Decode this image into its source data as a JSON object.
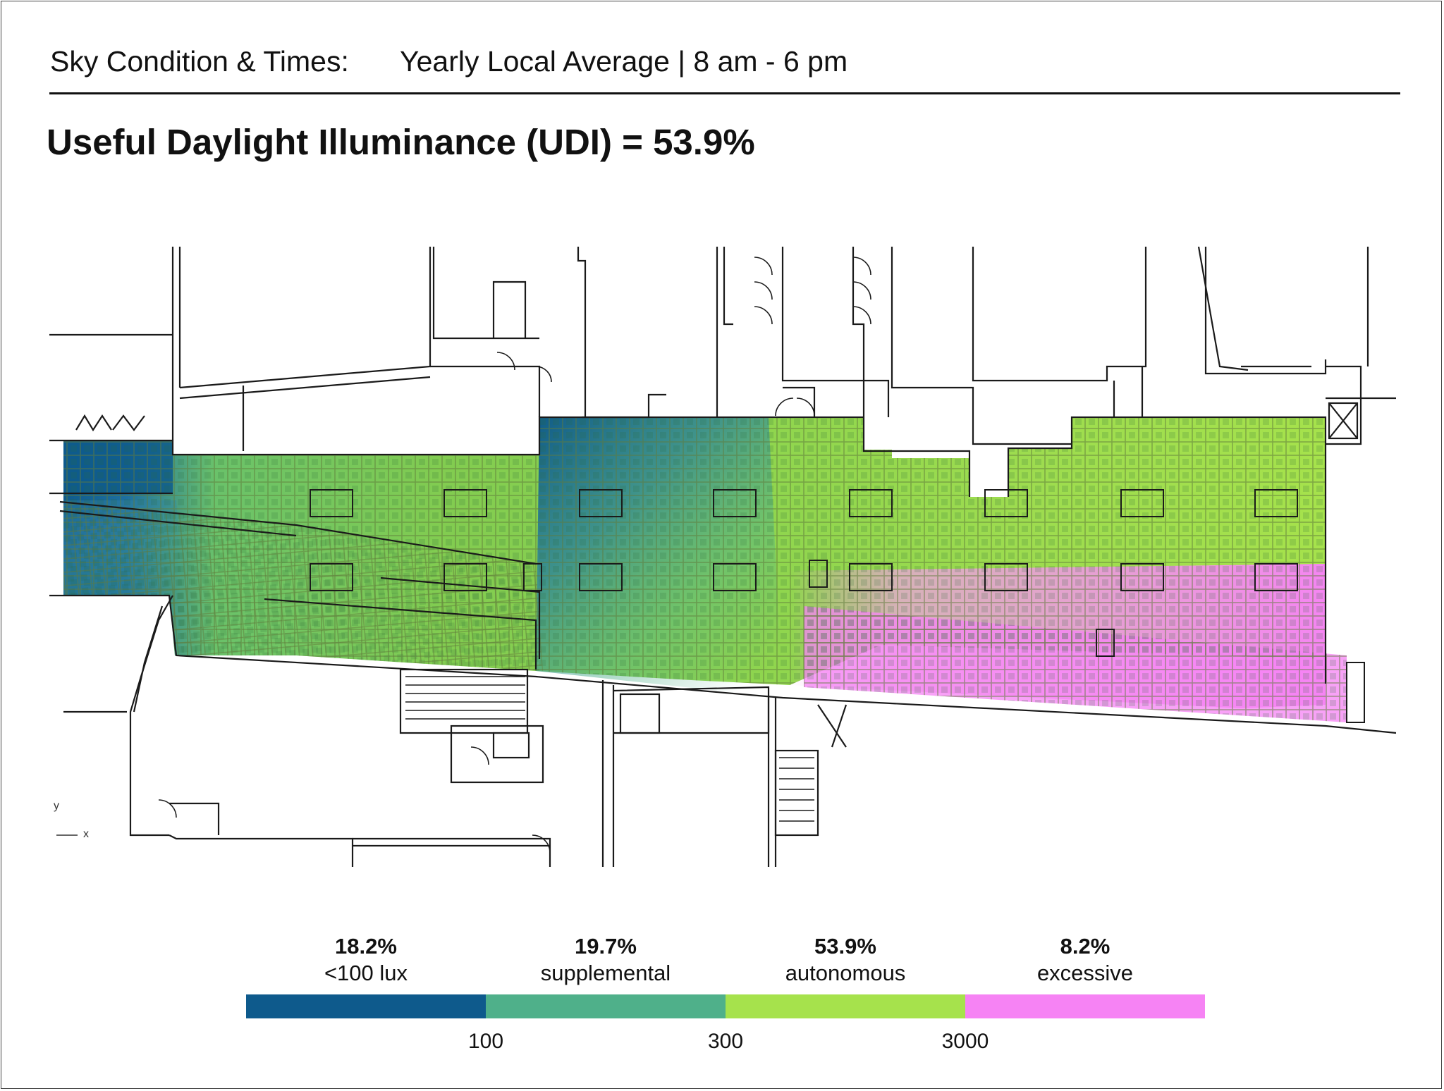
{
  "header": {
    "sky_label": "Sky Condition & Times:",
    "sky_value": "Yearly Local Average | 8 am - 6 pm",
    "udi_label": "Useful Daylight Illuminance (UDI) =",
    "udi_value": "53.9%"
  },
  "legend": {
    "bins": [
      {
        "percent": "18.2%",
        "label": "<100 lux",
        "color": "#0e5a8c"
      },
      {
        "percent": "19.7%",
        "label": "supplemental",
        "color": "#4fb08a"
      },
      {
        "percent": "53.9%",
        "label": "autonomous",
        "color": "#a6e24c"
      },
      {
        "percent": "8.2%",
        "label": "excessive",
        "color": "#f683f4"
      }
    ],
    "thresholds": [
      "100",
      "300",
      "3000"
    ]
  },
  "plan": {
    "axis_y": "y",
    "axis_x": "x",
    "colors": {
      "line": "#1a1a1a",
      "grid": "#5f7a3a"
    }
  }
}
